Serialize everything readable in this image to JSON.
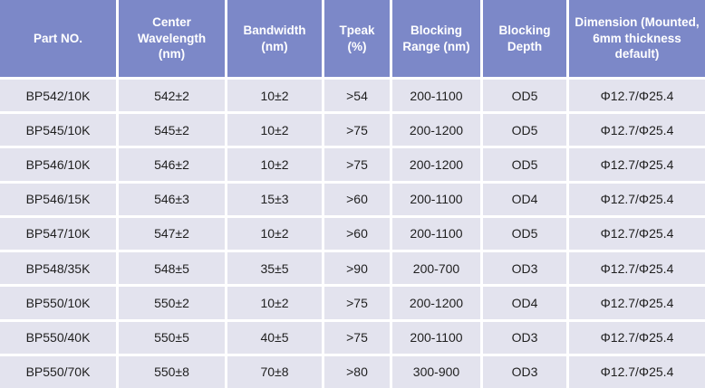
{
  "colors": {
    "header_bg": "#7c88c8",
    "header_text": "#ffffff",
    "row_bg": "#e3e3ee",
    "body_text": "#1f1f1f",
    "gap": "#ffffff"
  },
  "table": {
    "columns": [
      {
        "key": "part-no",
        "label": "Part NO."
      },
      {
        "key": "center-wavelength",
        "label": "Center Wavelength (nm)"
      },
      {
        "key": "bandwidth",
        "label": "Bandwidth (nm)"
      },
      {
        "key": "tpeak",
        "label": "Tpeak (%)"
      },
      {
        "key": "blocking-range",
        "label": "Blocking Range (nm)"
      },
      {
        "key": "blocking-depth",
        "label": "Blocking Depth"
      },
      {
        "key": "dimension",
        "label": "Dimension (Mounted, 6mm thickness default)"
      }
    ],
    "rows": [
      [
        "BP542/10K",
        "542±2",
        "10±2",
        ">54",
        "200-1100",
        "OD5",
        "Φ12.7/Φ25.4"
      ],
      [
        "BP545/10K",
        "545±2",
        "10±2",
        ">75",
        "200-1200",
        "OD5",
        "Φ12.7/Φ25.4"
      ],
      [
        "BP546/10K",
        "546±2",
        "10±2",
        ">75",
        "200-1200",
        "OD5",
        "Φ12.7/Φ25.4"
      ],
      [
        "BP546/15K",
        "546±3",
        "15±3",
        ">60",
        "200-1100",
        "OD4",
        "Φ12.7/Φ25.4"
      ],
      [
        "BP547/10K",
        "547±2",
        "10±2",
        ">60",
        "200-1100",
        "OD5",
        "Φ12.7/Φ25.4"
      ],
      [
        "BP548/35K",
        "548±5",
        "35±5",
        ">90",
        "200-700",
        "OD3",
        "Φ12.7/Φ25.4"
      ],
      [
        "BP550/10K",
        "550±2",
        "10±2",
        ">75",
        "200-1200",
        "OD4",
        "Φ12.7/Φ25.4"
      ],
      [
        "BP550/40K",
        "550±5",
        "40±5",
        ">75",
        "200-1100",
        "OD3",
        "Φ12.7/Φ25.4"
      ],
      [
        "BP550/70K",
        "550±8",
        "70±8",
        ">80",
        "300-900",
        "OD3",
        "Φ12.7/Φ25.4"
      ]
    ]
  }
}
